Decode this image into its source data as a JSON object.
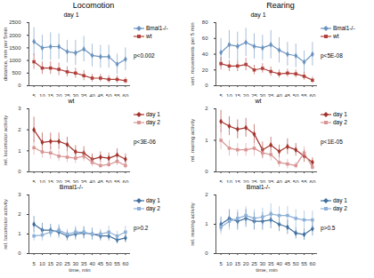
{
  "columns": [
    "Locomotion",
    "Rearing"
  ],
  "chart_data": [
    {
      "type": "line",
      "title": "day 1",
      "ylabel": "distance, mm per 5min",
      "x": [
        5,
        10,
        15,
        20,
        25,
        30,
        35,
        40,
        45,
        50,
        55,
        60
      ],
      "xlim": [
        2,
        63
      ],
      "xticks": [
        5,
        10,
        15,
        20,
        25,
        30,
        35,
        40,
        45,
        50,
        55,
        60
      ],
      "ylim": [
        0,
        2500
      ],
      "yticks": [
        0,
        500,
        1000,
        1500,
        2000,
        2500
      ],
      "legend": "right",
      "annotations": [
        "p<0.002"
      ],
      "series": [
        {
          "name": "Bmal1-/-",
          "color": "#6b93bf",
          "marker": "diamond",
          "values": [
            1750,
            1500,
            1550,
            1550,
            1350,
            1300,
            1450,
            1200,
            1150,
            1150,
            850,
            1050
          ],
          "errors": [
            550,
            500,
            550,
            500,
            450,
            500,
            500,
            450,
            450,
            450,
            400,
            450
          ]
        },
        {
          "name": "wt",
          "color": "#b0403a",
          "marker": "square",
          "values": [
            950,
            700,
            700,
            650,
            550,
            500,
            400,
            300,
            300,
            250,
            250,
            200
          ],
          "errors": [
            300,
            250,
            250,
            250,
            200,
            200,
            200,
            150,
            150,
            150,
            150,
            120
          ]
        }
      ]
    },
    {
      "type": "line",
      "title": "day 1",
      "ylabel": "vert. movements per 5 min",
      "x": [
        5,
        10,
        15,
        20,
        25,
        30,
        35,
        40,
        45,
        50,
        55,
        60
      ],
      "xlim": [
        2,
        63
      ],
      "xticks": [
        5,
        10,
        15,
        20,
        25,
        30,
        35,
        40,
        45,
        50,
        55,
        60
      ],
      "ylim": [
        0,
        80
      ],
      "yticks": [
        0,
        20,
        40,
        60,
        80
      ],
      "legend": "right",
      "annotations": [
        "p<5E-08"
      ],
      "series": [
        {
          "name": "Bmal1-/-",
          "color": "#6b93bf",
          "marker": "diamond",
          "values": [
            42,
            52,
            50,
            55,
            50,
            48,
            52,
            45,
            40,
            38,
            30,
            40
          ],
          "errors": [
            18,
            18,
            18,
            18,
            16,
            16,
            18,
            16,
            15,
            15,
            14,
            15
          ]
        },
        {
          "name": "wt",
          "color": "#b0403a",
          "marker": "square",
          "values": [
            28,
            25,
            25,
            27,
            20,
            22,
            18,
            15,
            16,
            15,
            12,
            7
          ],
          "errors": [
            8,
            7,
            7,
            8,
            6,
            6,
            6,
            5,
            5,
            5,
            5,
            4
          ]
        }
      ]
    },
    {
      "type": "line",
      "title": "wt",
      "ylabel": "rel. locomotor activity",
      "x": [
        5,
        10,
        15,
        20,
        25,
        30,
        35,
        40,
        45,
        50,
        55,
        60
      ],
      "xlim": [
        2,
        63
      ],
      "xticks": [
        5,
        10,
        15,
        20,
        25,
        30,
        35,
        40,
        45,
        50,
        55,
        60
      ],
      "ylim": [
        0,
        3
      ],
      "yticks": [
        0,
        1,
        2,
        3
      ],
      "legend": "right",
      "annotations": [
        "p<3E-06"
      ],
      "series": [
        {
          "name": "day 1",
          "color": "#a3342d",
          "marker": "diamond",
          "values": [
            2.0,
            1.4,
            1.45,
            1.45,
            1.3,
            0.95,
            0.9,
            0.6,
            0.7,
            0.65,
            0.8,
            0.6
          ],
          "errors": [
            0.6,
            0.45,
            0.4,
            0.4,
            0.35,
            0.3,
            0.3,
            0.25,
            0.25,
            0.25,
            0.3,
            0.25
          ]
        },
        {
          "name": "day 2",
          "color": "#d99594",
          "marker": "square",
          "values": [
            1.15,
            0.95,
            0.9,
            0.75,
            0.7,
            0.65,
            0.75,
            0.45,
            0.3,
            0.35,
            0.5,
            0.3
          ],
          "errors": [
            0.35,
            0.3,
            0.3,
            0.25,
            0.25,
            0.25,
            0.25,
            0.2,
            0.15,
            0.15,
            0.2,
            0.15
          ]
        }
      ]
    },
    {
      "type": "line",
      "title": "wt",
      "ylabel": "rel. rearing activity",
      "x": [
        5,
        10,
        15,
        20,
        25,
        30,
        35,
        40,
        45,
        50,
        55,
        60
      ],
      "xlim": [
        2,
        63
      ],
      "xticks": [
        5,
        10,
        15,
        20,
        25,
        30,
        35,
        40,
        45,
        50,
        55,
        60
      ],
      "ylim": [
        0,
        2
      ],
      "yticks": [
        0,
        1,
        2
      ],
      "legend": "right",
      "annotations": [
        "p<1E-05"
      ],
      "series": [
        {
          "name": "day 1",
          "color": "#a3342d",
          "marker": "diamond",
          "values": [
            1.6,
            1.45,
            1.35,
            1.4,
            1.2,
            0.7,
            0.85,
            0.65,
            0.8,
            0.7,
            0.5,
            0.3
          ],
          "errors": [
            0.35,
            0.3,
            0.3,
            0.3,
            0.3,
            0.25,
            0.25,
            0.2,
            0.25,
            0.2,
            0.2,
            0.15
          ]
        },
        {
          "name": "day 2",
          "color": "#d99594",
          "marker": "square",
          "values": [
            1.0,
            0.75,
            0.7,
            0.7,
            0.75,
            0.6,
            0.55,
            0.3,
            0.25,
            0.2,
            0.6,
            0.15
          ],
          "errors": [
            0.3,
            0.25,
            0.2,
            0.2,
            0.25,
            0.2,
            0.2,
            0.15,
            0.15,
            0.1,
            0.2,
            0.1
          ]
        }
      ]
    },
    {
      "type": "line",
      "title": "Bmal1-/-",
      "ylabel": "rel. locomotor activity",
      "xlabel": "time, min",
      "x": [
        5,
        10,
        15,
        20,
        25,
        30,
        35,
        40,
        45,
        50,
        55,
        60
      ],
      "xlim": [
        2,
        63
      ],
      "xticks": [
        5,
        10,
        15,
        20,
        25,
        30,
        35,
        40,
        45,
        50,
        55,
        60
      ],
      "ylim": [
        0,
        3
      ],
      "yticks": [
        0,
        1,
        2,
        3
      ],
      "legend": "right",
      "annotations": [
        "p>0.2"
      ],
      "series": [
        {
          "name": "day 1",
          "color": "#3f6f9f",
          "marker": "diamond",
          "values": [
            1.5,
            1.2,
            1.2,
            1.1,
            0.9,
            1.0,
            1.05,
            1.0,
            0.9,
            0.9,
            0.7,
            0.8
          ],
          "errors": [
            0.4,
            0.35,
            0.3,
            0.3,
            0.25,
            0.3,
            0.3,
            0.3,
            0.25,
            0.25,
            0.2,
            0.25
          ]
        },
        {
          "name": "day 2",
          "color": "#8eb0d6",
          "marker": "square",
          "values": [
            0.9,
            0.95,
            1.1,
            1.2,
            1.0,
            1.1,
            1.1,
            1.0,
            1.0,
            1.1,
            0.9,
            1.1
          ],
          "errors": [
            0.25,
            0.3,
            0.3,
            0.3,
            0.25,
            0.3,
            0.3,
            0.3,
            0.25,
            0.3,
            0.25,
            0.3
          ]
        }
      ]
    },
    {
      "type": "line",
      "title": "Bmal1-/-",
      "ylabel": "rel. rearing activity",
      "xlabel": "time, min",
      "x": [
        5,
        10,
        15,
        20,
        25,
        30,
        35,
        40,
        45,
        50,
        55,
        60
      ],
      "xlim": [
        2,
        63
      ],
      "xticks": [
        5,
        10,
        15,
        20,
        25,
        30,
        35,
        40,
        45,
        50,
        55,
        60
      ],
      "ylim": [
        0,
        2
      ],
      "yticks": [
        0,
        1,
        2
      ],
      "legend": "right",
      "annotations": [
        "p>0.5"
      ],
      "series": [
        {
          "name": "day 1",
          "color": "#3f6f9f",
          "marker": "diamond",
          "values": [
            1.0,
            1.2,
            1.1,
            1.2,
            1.1,
            1.1,
            1.15,
            1.0,
            0.9,
            0.7,
            0.65,
            0.85
          ],
          "errors": [
            0.25,
            0.3,
            0.3,
            0.3,
            0.3,
            0.3,
            0.3,
            0.25,
            0.25,
            0.2,
            0.2,
            0.25
          ]
        },
        {
          "name": "day 2",
          "color": "#8eb0d6",
          "marker": "square",
          "values": [
            0.9,
            1.1,
            1.2,
            1.3,
            1.2,
            1.25,
            1.35,
            1.3,
            1.3,
            1.2,
            1.15,
            1.15
          ],
          "errors": [
            0.25,
            0.3,
            0.3,
            0.3,
            0.3,
            0.3,
            0.35,
            0.3,
            0.3,
            0.3,
            0.3,
            0.3
          ]
        }
      ]
    }
  ]
}
